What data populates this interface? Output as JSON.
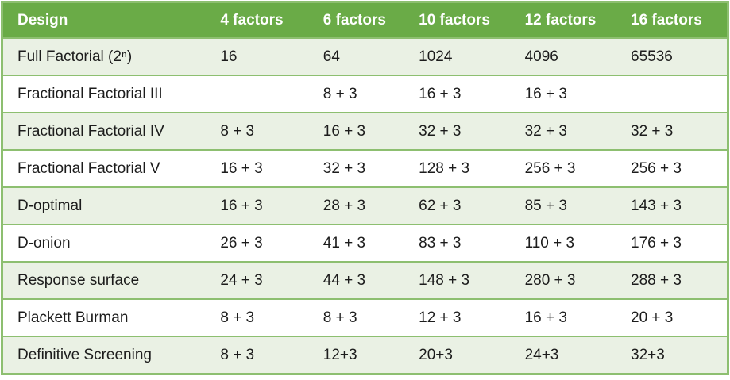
{
  "table": {
    "columns": [
      "Design",
      "4 factors",
      "6 factors",
      "10 factors",
      "12 factors",
      "16 factors"
    ],
    "rows": [
      {
        "design": "Full Factorial (2ⁿ)",
        "values": [
          "16",
          "64",
          "1024",
          "4096",
          "65536"
        ]
      },
      {
        "design": "Fractional Factorial III",
        "values": [
          "",
          "8 + 3",
          "16 + 3",
          "16 + 3",
          ""
        ]
      },
      {
        "design": "Fractional Factorial IV",
        "values": [
          "8 + 3",
          "16 + 3",
          "32 + 3",
          "32 + 3",
          "32 + 3"
        ]
      },
      {
        "design": "Fractional Factorial V",
        "values": [
          "16 + 3",
          "32 + 3",
          "128 + 3",
          "256 + 3",
          "256 + 3"
        ]
      },
      {
        "design": "D-optimal",
        "values": [
          "16 + 3",
          "28 + 3",
          "62 + 3",
          "85 + 3",
          "143 + 3"
        ]
      },
      {
        "design": "D-onion",
        "values": [
          "26 + 3",
          "41 + 3",
          "83 + 3",
          "110 + 3",
          "176 + 3"
        ]
      },
      {
        "design": "Response surface",
        "values": [
          "24 + 3",
          "44 + 3",
          "148 + 3",
          "280 + 3",
          "288 + 3"
        ]
      },
      {
        "design": "Plackett Burman",
        "values": [
          "8 + 3",
          "8 + 3",
          "12 + 3",
          "16 + 3",
          "20 + 3"
        ]
      },
      {
        "design": "Definitive Screening",
        "values": [
          "8 + 3",
          "12+3",
          "20+3",
          "24+3",
          "32+3"
        ]
      }
    ]
  },
  "colors": {
    "header_background": "#6aab47",
    "header_text": "#ffffff",
    "border_green": "#8dbf70",
    "row_alternate_green": "#eaf1e4",
    "row_white": "#ffffff",
    "body_text": "#1c1c1c"
  }
}
